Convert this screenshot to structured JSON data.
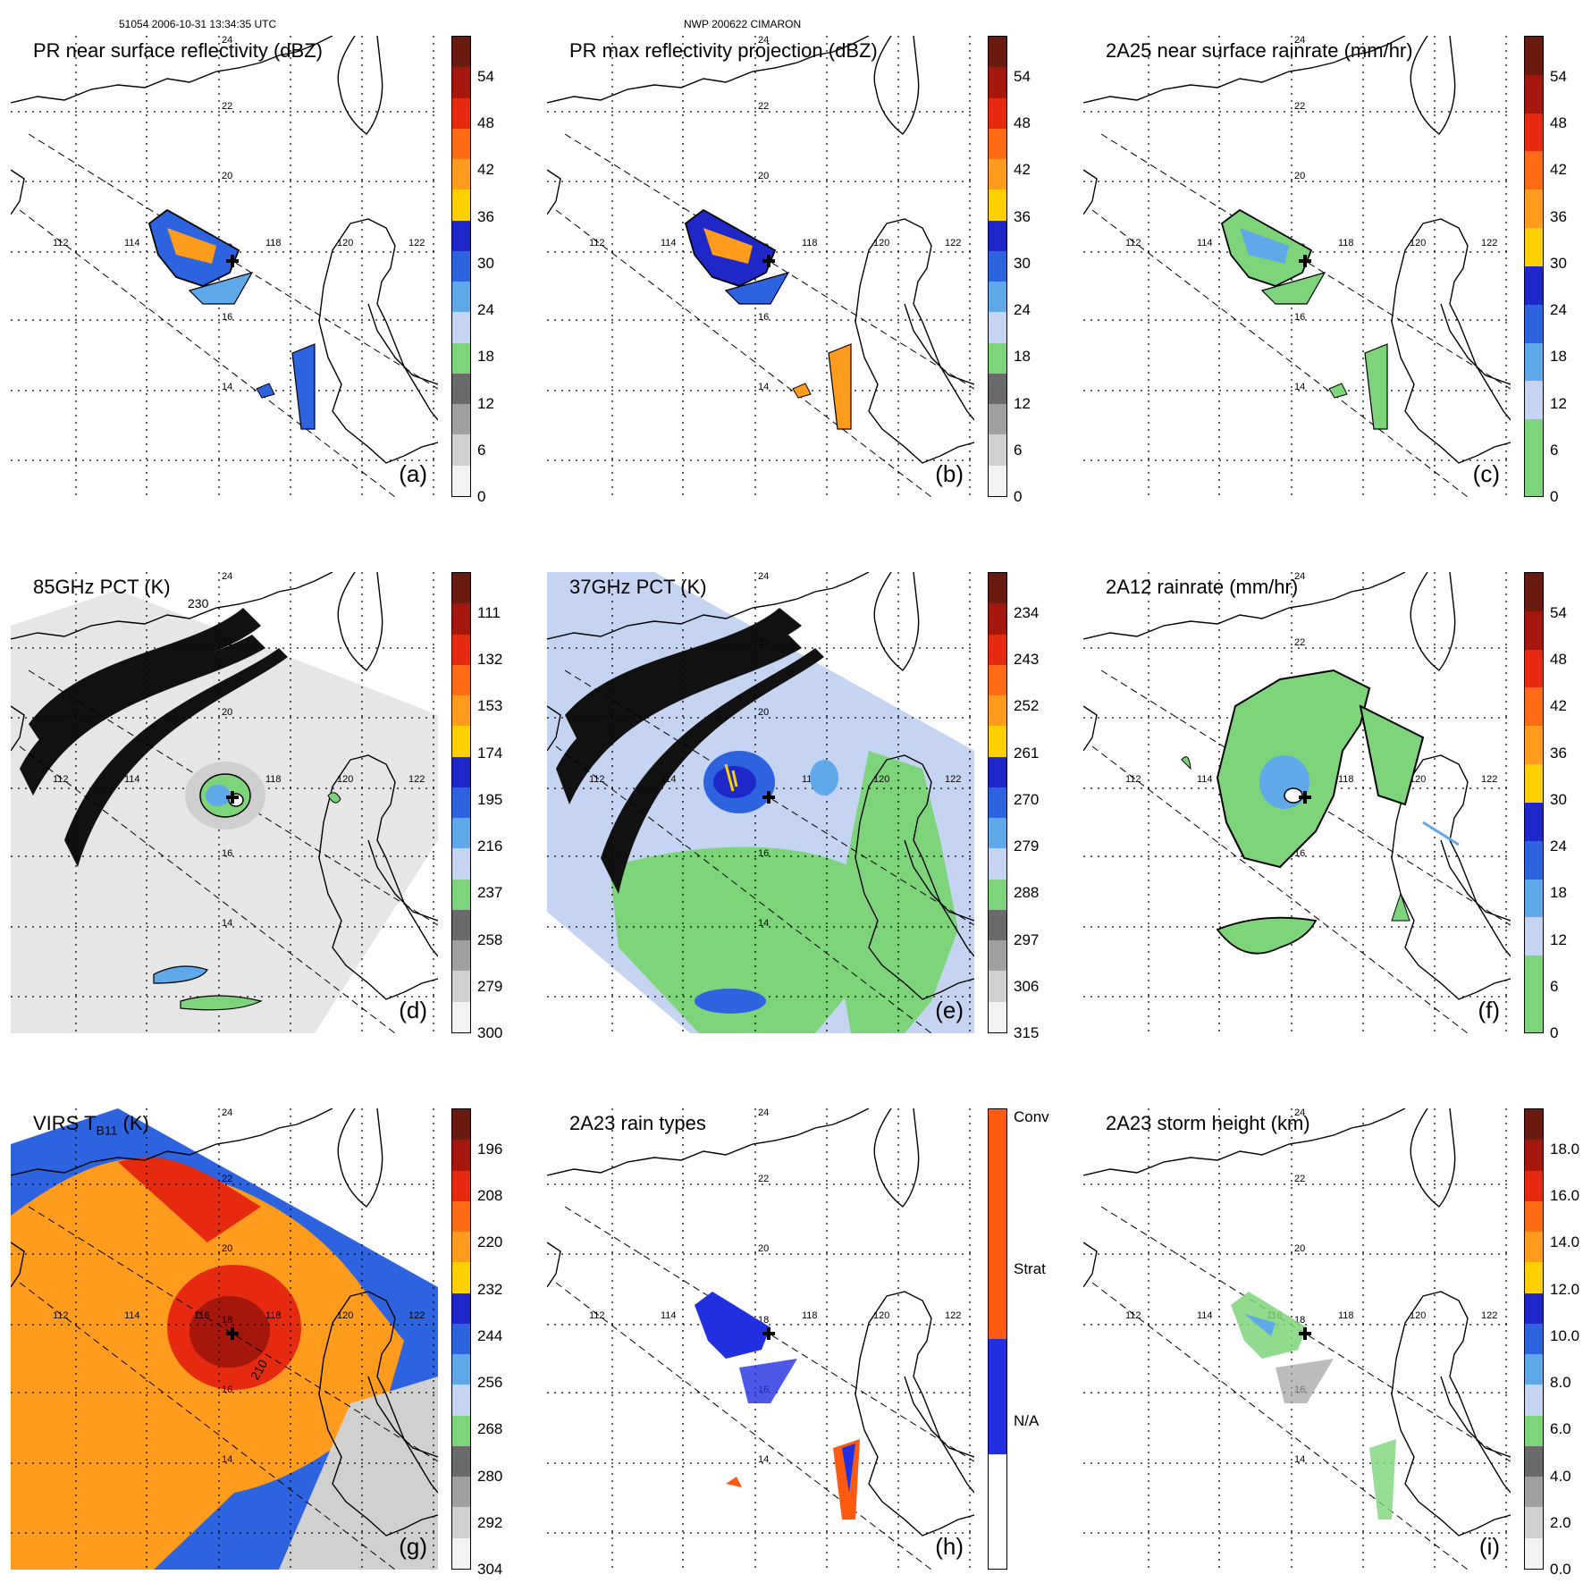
{
  "header": {
    "orbit_time": "51054 2006-10-31 13:34:35 UTC",
    "storm": "NWP 200622 CIMARON"
  },
  "lat_labels": [
    "24",
    "22",
    "20",
    "18",
    "16",
    "14"
  ],
  "lon_labels": [
    "112",
    "114",
    "116",
    "118",
    "120",
    "122"
  ],
  "palettes": {
    "refl": [
      "#6b1a0e",
      "#a5160c",
      "#e52a10",
      "#ff6a14",
      "#ff9c1e",
      "#ffd000",
      "#1e28c8",
      "#2e63e0",
      "#5fa8ea",
      "#c4d4f2",
      "#7ed47a",
      "#6a6a6a",
      "#a0a0a0",
      "#d0d0d0",
      "#f2f2f2"
    ],
    "virs": [
      "#6b1a0e",
      "#a5160c",
      "#e52a10",
      "#ff6a14",
      "#ff9c1e",
      "#ffd000",
      "#1e28c8",
      "#2e63e0",
      "#5fa8ea",
      "#c4d4f2",
      "#7ed47a",
      "#6a6a6a",
      "#a0a0a0",
      "#d0d0d0",
      "#f2f2f2"
    ],
    "rain": [
      "#6b1a0e",
      "#a5160c",
      "#e52a10",
      "#ff6a14",
      "#ff9c1e",
      "#ffd000",
      "#1e28c8",
      "#2e63e0",
      "#5fa8ea",
      "#c4d4f2",
      "#7ed47a",
      "#7ed47a"
    ],
    "types": [
      "#ff5a10",
      "#ff5a10",
      "#2030e0",
      "#ffffff"
    ]
  },
  "panels": [
    {
      "id": "a",
      "title": "PR near surface reflectivity (dBZ)",
      "label": "(a)",
      "palette": "refl",
      "ticks": [
        "54",
        "48",
        "42",
        "36",
        "30",
        "24",
        "18",
        "12",
        "6",
        "0"
      ]
    },
    {
      "id": "b",
      "title": "PR max reflectivity projection (dBZ)",
      "label": "(b)",
      "palette": "refl",
      "ticks": [
        "54",
        "48",
        "42",
        "36",
        "30",
        "24",
        "18",
        "12",
        "6",
        "0"
      ]
    },
    {
      "id": "c",
      "title": "2A25 near surface rainrate (mm/hr)",
      "label": "(c)",
      "palette": "rain",
      "ticks": [
        "54",
        "48",
        "42",
        "36",
        "30",
        "24",
        "18",
        "12",
        "6",
        "0"
      ]
    },
    {
      "id": "d",
      "title": "85GHz PCT (K)",
      "label": "(d)",
      "palette": "refl",
      "ticks": [
        "111",
        "132",
        "153",
        "174",
        "195",
        "216",
        "237",
        "258",
        "279",
        "300"
      ]
    },
    {
      "id": "e",
      "title": "37GHz PCT (K)",
      "label": "(e)",
      "palette": "refl",
      "ticks": [
        "234",
        "243",
        "252",
        "261",
        "270",
        "279",
        "288",
        "297",
        "306",
        "315"
      ]
    },
    {
      "id": "f",
      "title": "2A12 rainrate (mm/hr)",
      "label": "(f)",
      "palette": "rain",
      "ticks": [
        "54",
        "48",
        "42",
        "36",
        "30",
        "24",
        "18",
        "12",
        "6",
        "0"
      ]
    },
    {
      "id": "g",
      "title": "VIRS T",
      "title_sub": "B11",
      "title_suffix": " (K)",
      "label": "(g)",
      "palette": "virs",
      "ticks": [
        "196",
        "208",
        "220",
        "232",
        "244",
        "256",
        "268",
        "280",
        "292",
        "304"
      ]
    },
    {
      "id": "h",
      "title": "2A23 rain types",
      "label": "(h)",
      "palette": "types",
      "ticks": [
        "Conv",
        "Strat",
        "N/A"
      ]
    },
    {
      "id": "i",
      "title": "2A23 storm height (km)",
      "label": "(i)",
      "palette": "refl",
      "ticks": [
        "18.0",
        "16.0",
        "14.0",
        "12.0",
        "10.0",
        "8.0",
        "6.0",
        "4.0",
        "2.0",
        "0.0"
      ]
    }
  ],
  "contour_labels": {
    "d": "230",
    "g": "210"
  }
}
